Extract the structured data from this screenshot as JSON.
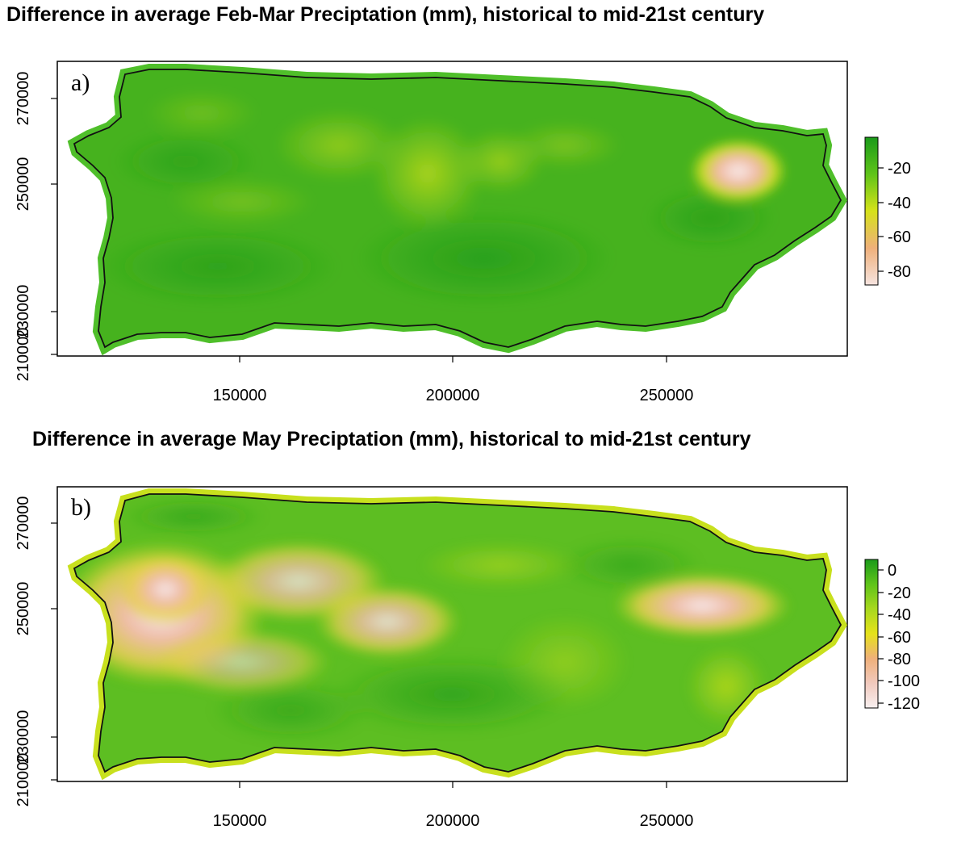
{
  "panels": [
    {
      "id": "a",
      "title": "Difference in average Feb-Mar Preciptation (mm), historical to mid-21st century",
      "panel_label": "a)",
      "x_ticks": [
        "150000",
        "200000",
        "250000"
      ],
      "y_ticks": [
        "210000",
        "230000",
        "250000",
        "270000"
      ],
      "colorbar_ticks": [
        "-20",
        "-40",
        "-60",
        "-80"
      ],
      "colorbar_colors": [
        "#1a9a1a",
        "#5fc41a",
        "#d6e21a",
        "#efb07a",
        "#f6e4e0"
      ]
    },
    {
      "id": "b",
      "title": "Difference in average May Preciptation (mm), historical to mid-21st century",
      "panel_label": "b)",
      "x_ticks": [
        "150000",
        "200000",
        "250000"
      ],
      "y_ticks": [
        "210000",
        "230000",
        "250000",
        "270000"
      ],
      "colorbar_ticks": [
        "0",
        "-20",
        "-40",
        "-60",
        "-80",
        "-100",
        "-120"
      ],
      "colorbar_colors": [
        "#1a9a1a",
        "#5fc41a",
        "#a8d81e",
        "#e6e21a",
        "#efb07a",
        "#f1c9bd",
        "#f8f0f0"
      ]
    }
  ]
}
